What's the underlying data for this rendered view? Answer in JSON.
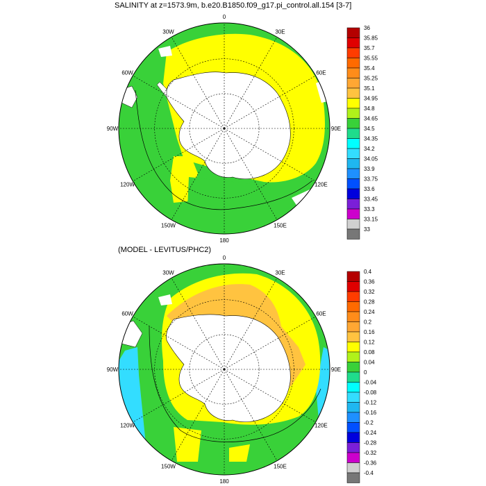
{
  "titles": {
    "top": "SALINITY at z=1573.9m, b.e20.B1850.f09_g17.pi_control.all.154 [3-7]",
    "bottom": "(MODEL - LEVITUS/PHC2)"
  },
  "lon_labels": [
    "0",
    "30E",
    "60E",
    "90E",
    "120E",
    "150E",
    "180",
    "150W",
    "120W",
    "90W",
    "60W",
    "30W"
  ],
  "colorbar_top": {
    "labels": [
      "36",
      "35.85",
      "35.7",
      "35.55",
      "35.4",
      "35.25",
      "35.1",
      "34.95",
      "34.8",
      "34.65",
      "34.5",
      "34.35",
      "34.2",
      "34.05",
      "33.9",
      "33.75",
      "33.6",
      "33.45",
      "33.3",
      "33.15",
      "33"
    ],
    "colors": [
      "#b40000",
      "#e00000",
      "#ff3c00",
      "#ff6a00",
      "#ff8c1a",
      "#ffa733",
      "#ffc340",
      "#ffff00",
      "#b0f21a",
      "#39d139",
      "#1fdc8c",
      "#00ffff",
      "#33ddff",
      "#1fb7f0",
      "#1e90ff",
      "#0050ff",
      "#0000dd",
      "#7b1fd8",
      "#cc00cc",
      "#d0d0d0",
      "#777777"
    ]
  },
  "colorbar_bottom": {
    "labels": [
      "0.4",
      "0.36",
      "0.32",
      "0.28",
      "0.24",
      "0.2",
      "0.16",
      "0.12",
      "0.08",
      "0.04",
      "0",
      "-0.04",
      "-0.08",
      "-0.12",
      "-0.16",
      "-0.2",
      "-0.24",
      "-0.28",
      "-0.32",
      "-0.36",
      "-0.4"
    ],
    "colors": [
      "#b40000",
      "#e00000",
      "#ff3c00",
      "#ff6a00",
      "#ff8c1a",
      "#ffa733",
      "#ffc340",
      "#ffff00",
      "#b0f21a",
      "#39d139",
      "#1fdc8c",
      "#00ffff",
      "#33ddff",
      "#1fb7f0",
      "#1e90ff",
      "#0050ff",
      "#0000dd",
      "#7b1fd8",
      "#cc00cc",
      "#d0d0d0",
      "#777777"
    ]
  },
  "map_colors": {
    "green": "#39d139",
    "yellow": "#ffff00",
    "orange": "#ffc340",
    "cyan": "#33ddff",
    "teal": "#1fdc8c",
    "land": "#ffffff"
  }
}
